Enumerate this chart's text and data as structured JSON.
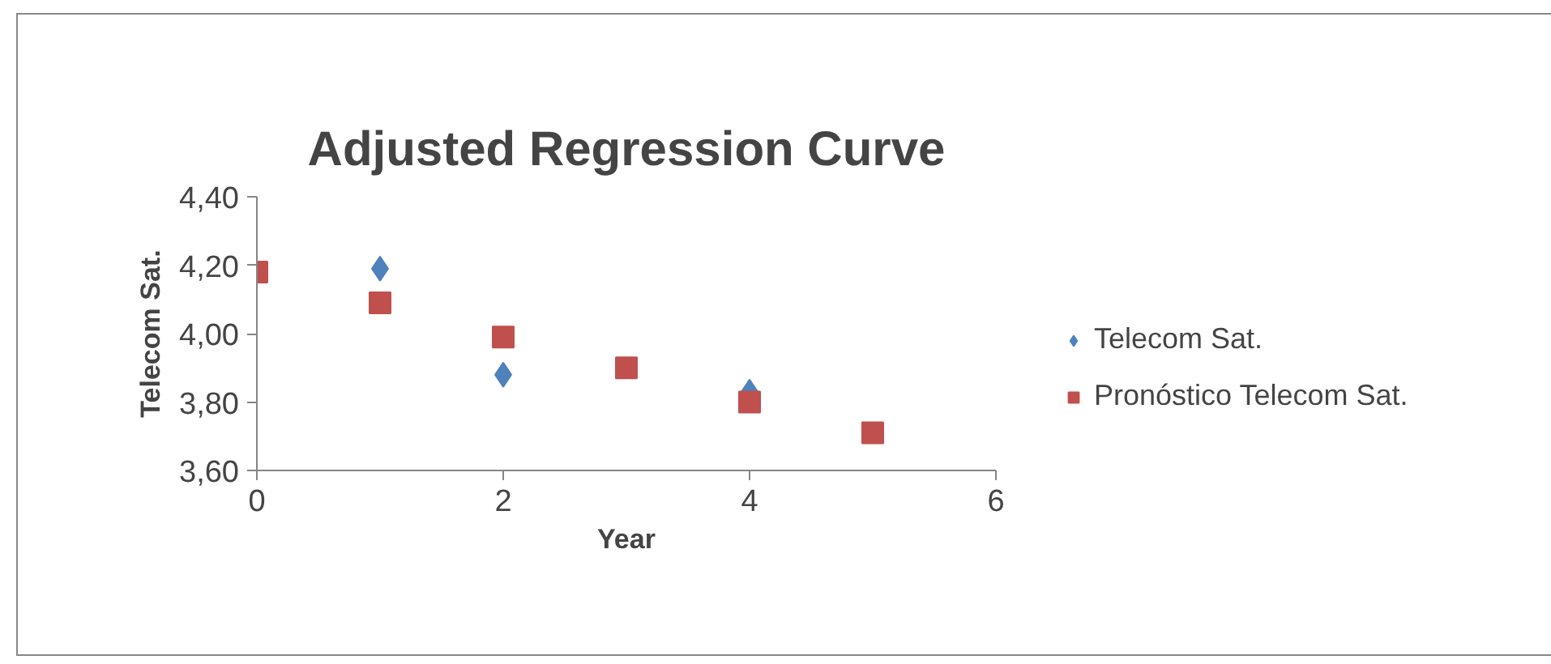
{
  "chart_data": {
    "type": "scatter",
    "title": "Adjusted Regression Curve",
    "xlabel": "Year",
    "ylabel": "Telecom Sat.",
    "x": [
      0,
      1,
      2,
      3,
      4,
      5
    ],
    "series": [
      {
        "name": "Telecom Sat.",
        "color": "#4f81bd",
        "marker": "diamond",
        "values": [
          null,
          4.19,
          3.88,
          null,
          3.83,
          null
        ]
      },
      {
        "name": "Pronóstico Telecom Sat.",
        "color": "#c0504d",
        "marker": "square",
        "values": [
          4.18,
          4.09,
          3.99,
          3.9,
          3.8,
          3.71
        ]
      }
    ],
    "xlim": [
      0,
      6
    ],
    "xticks": [
      0,
      2,
      4,
      6
    ],
    "ylim": [
      3.6,
      4.4
    ],
    "yticks": [
      {
        "value": 3.6,
        "label": "3,60"
      },
      {
        "value": 3.8,
        "label": "3,80"
      },
      {
        "value": 4.0,
        "label": "4,00"
      },
      {
        "value": 4.2,
        "label": "4,20"
      },
      {
        "value": 4.4,
        "label": "4,40"
      }
    ],
    "grid": false,
    "legend": "right"
  }
}
